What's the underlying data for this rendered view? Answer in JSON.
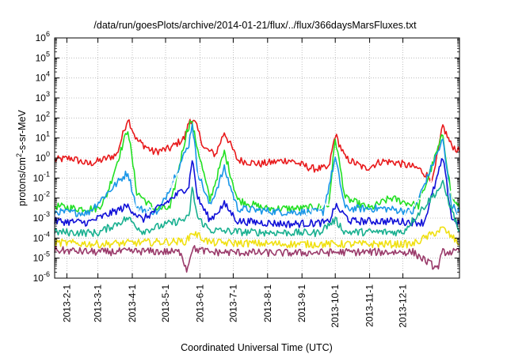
{
  "chart_data": {
    "type": "line",
    "title": "/data/run/goesPlots/archive/2014-01-21/flux/../flux/366daysMarsFluxes.txt",
    "xlabel": "Coordinated Universal Time (UTC)",
    "ylabel_main": "protons/cm",
    "ylabel_sup": "2",
    "ylabel_tail": "-s-sr-MeV",
    "y_scale": "log",
    "ylim": [
      1e-06,
      1000000.0
    ],
    "xlim": [
      "2013-01-21",
      "2014-01-21"
    ],
    "grid": true,
    "x_ticks": [
      {
        "date": "2013-02-01",
        "label": "2013-2-1"
      },
      {
        "date": "2013-03-01",
        "label": "2013-3-1"
      },
      {
        "date": "2013-04-01",
        "label": "2013-4-1"
      },
      {
        "date": "2013-05-01",
        "label": "2013-5-1"
      },
      {
        "date": "2013-06-01",
        "label": "2013-6-1"
      },
      {
        "date": "2013-07-01",
        "label": "2013-7-1"
      },
      {
        "date": "2013-08-01",
        "label": "2013-8-1"
      },
      {
        "date": "2013-09-01",
        "label": "2013-9-1"
      },
      {
        "date": "2013-10-01",
        "label": "2013-10-1"
      },
      {
        "date": "2013-11-01",
        "label": "2013-11-1"
      },
      {
        "date": "2013-12-01",
        "label": "2013-12-1"
      }
    ],
    "y_ticks": [
      {
        "exp": -6,
        "base": "10",
        "sup": "-6"
      },
      {
        "exp": -5,
        "base": "10",
        "sup": "-5"
      },
      {
        "exp": -4,
        "base": "10",
        "sup": "-4"
      },
      {
        "exp": -3,
        "base": "10",
        "sup": "-3"
      },
      {
        "exp": -2,
        "base": "10",
        "sup": "-2"
      },
      {
        "exp": -1,
        "base": "10",
        "sup": "-1"
      },
      {
        "exp": 0,
        "base": "10",
        "sup": "0"
      },
      {
        "exp": 1,
        "base": "10",
        "sup": "1"
      },
      {
        "exp": 2,
        "base": "10",
        "sup": "2"
      },
      {
        "exp": 3,
        "base": "10",
        "sup": "3"
      },
      {
        "exp": 4,
        "base": "10",
        "sup": "4"
      },
      {
        "exp": 5,
        "base": "10",
        "sup": "5"
      },
      {
        "exp": 6,
        "base": "10",
        "sup": "6"
      }
    ],
    "series": [
      {
        "color": "#e8191b",
        "points": [
          [
            "2013-01-21",
            0.8
          ],
          [
            "2013-02-05",
            1.0
          ],
          [
            "2013-02-20",
            0.5
          ],
          [
            "2013-03-05",
            0.8
          ],
          [
            "2013-03-18",
            1.5
          ],
          [
            "2013-03-28",
            100
          ],
          [
            "2013-04-05",
            8
          ],
          [
            "2013-04-20",
            2
          ],
          [
            "2013-05-05",
            3
          ],
          [
            "2013-05-18",
            10
          ],
          [
            "2013-05-23",
            90
          ],
          [
            "2013-05-28",
            50
          ],
          [
            "2013-06-05",
            3
          ],
          [
            "2013-06-15",
            1.5
          ],
          [
            "2013-06-23",
            20
          ],
          [
            "2013-07-05",
            0.8
          ],
          [
            "2013-07-25",
            0.5
          ],
          [
            "2013-08-20",
            0.8
          ],
          [
            "2013-09-10",
            0.3
          ],
          [
            "2013-09-25",
            0.3
          ],
          [
            "2013-10-01",
            15
          ],
          [
            "2013-10-10",
            1
          ],
          [
            "2013-10-28",
            0.3
          ],
          [
            "2013-11-12",
            0.7
          ],
          [
            "2013-11-25",
            0.6
          ],
          [
            "2013-12-15",
            0.3
          ],
          [
            "2013-12-28",
            0.08
          ],
          [
            "2014-01-06",
            40
          ],
          [
            "2014-01-13",
            5
          ],
          [
            "2014-01-21",
            2
          ]
        ]
      },
      {
        "color": "#22e022",
        "points": [
          [
            "2013-01-21",
            0.004
          ],
          [
            "2013-02-10",
            0.003
          ],
          [
            "2013-03-01",
            0.003
          ],
          [
            "2013-03-08",
            0.01
          ],
          [
            "2013-03-28",
            30
          ],
          [
            "2013-04-05",
            0.02
          ],
          [
            "2013-04-20",
            0.003
          ],
          [
            "2013-05-05",
            0.003
          ],
          [
            "2013-05-20",
            20
          ],
          [
            "2013-05-24",
            80
          ],
          [
            "2013-05-29",
            5
          ],
          [
            "2013-06-10",
            0.008
          ],
          [
            "2013-06-23",
            2
          ],
          [
            "2013-07-05",
            0.008
          ],
          [
            "2013-07-30",
            0.003
          ],
          [
            "2013-09-01",
            0.003
          ],
          [
            "2013-09-25",
            0.004
          ],
          [
            "2013-10-01",
            10
          ],
          [
            "2013-10-10",
            0.01
          ],
          [
            "2013-11-01",
            0.003
          ],
          [
            "2013-11-20",
            0.01
          ],
          [
            "2013-12-15",
            0.004
          ],
          [
            "2014-01-06",
            15
          ],
          [
            "2014-01-14",
            0.01
          ],
          [
            "2014-01-21",
            0.003
          ]
        ]
      },
      {
        "color": "#1996e8",
        "points": [
          [
            "2013-01-21",
            0.002
          ],
          [
            "2013-02-20",
            0.0018
          ],
          [
            "2013-03-28",
            0.2
          ],
          [
            "2013-04-05",
            0.003
          ],
          [
            "2013-04-25",
            0.002
          ],
          [
            "2013-05-22",
            5
          ],
          [
            "2013-05-25",
            60
          ],
          [
            "2013-05-30",
            0.2
          ],
          [
            "2013-06-10",
            0.004
          ],
          [
            "2013-06-23",
            0.3
          ],
          [
            "2013-07-05",
            0.003
          ],
          [
            "2013-08-15",
            0.002
          ],
          [
            "2013-09-20",
            0.002
          ],
          [
            "2013-10-01",
            1
          ],
          [
            "2013-10-10",
            0.003
          ],
          [
            "2013-11-15",
            0.003
          ],
          [
            "2013-12-10",
            0.002
          ],
          [
            "2014-01-06",
            8
          ],
          [
            "2014-01-14",
            0.004
          ],
          [
            "2014-01-21",
            0.002
          ]
        ]
      },
      {
        "color": "#ffffff",
        "points": [
          [
            "2013-01-21",
            0.001
          ],
          [
            "2013-03-01",
            0.0009
          ],
          [
            "2013-03-28",
            0.03
          ],
          [
            "2013-04-10",
            0.001
          ],
          [
            "2013-05-22",
            0.5
          ],
          [
            "2013-05-25",
            2
          ],
          [
            "2013-06-05",
            0.002
          ],
          [
            "2013-07-10",
            0.001
          ],
          [
            "2013-09-01",
            0.001
          ],
          [
            "2013-10-01",
            0.01
          ],
          [
            "2013-10-15",
            0.001
          ],
          [
            "2013-12-01",
            0.001
          ],
          [
            "2014-01-06",
            0.3
          ],
          [
            "2014-01-21",
            0.001
          ]
        ]
      },
      {
        "color": "#1010d8",
        "points": [
          [
            "2013-01-21",
            0.0007
          ],
          [
            "2013-02-20",
            0.0006
          ],
          [
            "2013-03-28",
            0.004
          ],
          [
            "2013-04-10",
            0.0008
          ],
          [
            "2013-05-22",
            0.04
          ],
          [
            "2013-05-25",
            1
          ],
          [
            "2013-05-30",
            0.01
          ],
          [
            "2013-06-10",
            0.0008
          ],
          [
            "2013-06-23",
            0.005
          ],
          [
            "2013-07-05",
            0.0007
          ],
          [
            "2013-08-20",
            0.0005
          ],
          [
            "2013-09-25",
            0.0006
          ],
          [
            "2013-10-01",
            0.004
          ],
          [
            "2013-10-15",
            0.0007
          ],
          [
            "2013-11-20",
            0.0007
          ],
          [
            "2013-12-20",
            0.0006
          ],
          [
            "2014-01-06",
            1
          ],
          [
            "2014-01-14",
            0.001
          ],
          [
            "2014-01-21",
            0.0005
          ]
        ]
      },
      {
        "color": "#19b090",
        "points": [
          [
            "2013-01-21",
            0.0002
          ],
          [
            "2013-03-01",
            0.00018
          ],
          [
            "2013-03-28",
            0.001
          ],
          [
            "2013-04-10",
            0.00022
          ],
          [
            "2013-05-22",
            0.001
          ],
          [
            "2013-05-25",
            0.03
          ],
          [
            "2013-05-30",
            0.001
          ],
          [
            "2013-06-10",
            0.00025
          ],
          [
            "2013-07-10",
            0.0002
          ],
          [
            "2013-09-15",
            0.00018
          ],
          [
            "2013-10-01",
            0.0008
          ],
          [
            "2013-10-10",
            0.0002
          ],
          [
            "2013-12-01",
            0.0002
          ],
          [
            "2014-01-06",
            0.05
          ],
          [
            "2014-01-21",
            0.0002
          ]
        ]
      },
      {
        "color": "#f0e010",
        "points": [
          [
            "2013-01-21",
            6e-05
          ],
          [
            "2013-03-01",
            5e-05
          ],
          [
            "2013-04-10",
            6e-05
          ],
          [
            "2013-05-20",
            7e-05
          ],
          [
            "2013-05-25",
            0.0002
          ],
          [
            "2013-06-10",
            6e-05
          ],
          [
            "2013-08-20",
            5e-05
          ],
          [
            "2013-10-10",
            5e-05
          ],
          [
            "2013-12-10",
            5e-05
          ],
          [
            "2014-01-06",
            0.0003
          ],
          [
            "2014-01-21",
            5e-05
          ]
        ]
      },
      {
        "color": "#9a3a6a",
        "points": [
          [
            "2013-01-21",
            2.5e-05
          ],
          [
            "2013-03-01",
            2e-05
          ],
          [
            "2013-04-10",
            2.2e-05
          ],
          [
            "2013-05-15",
            2e-05
          ],
          [
            "2013-05-20",
            2.5e-06
          ],
          [
            "2013-05-25",
            3e-05
          ],
          [
            "2013-06-10",
            2e-05
          ],
          [
            "2013-08-20",
            1.8e-05
          ],
          [
            "2013-10-10",
            2e-05
          ],
          [
            "2013-12-10",
            2e-05
          ],
          [
            "2014-01-01",
            3e-06
          ],
          [
            "2014-01-06",
            2e-05
          ],
          [
            "2014-01-21",
            2e-05
          ]
        ]
      }
    ]
  }
}
